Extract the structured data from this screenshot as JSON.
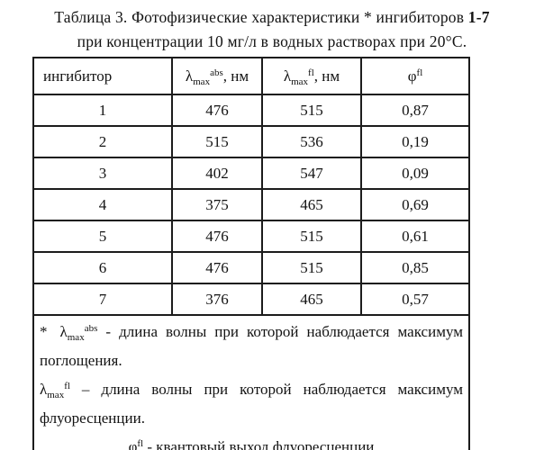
{
  "page": {
    "title_line1_prefix": "Таблица 3. Фотофизические характеристики * ингибиторов ",
    "title_line1_bold": "1-7",
    "title_line2": "при концентрации 10 мг/л в водных растворах при 20°С."
  },
  "table": {
    "columns": [
      {
        "label": "ингибитор"
      },
      {
        "symbol": "λ",
        "sub": "max",
        "sup": "abs",
        "suffix": ", нм"
      },
      {
        "symbol": "λ",
        "sub": "max",
        "sup": "fl",
        "suffix": ", нм"
      },
      {
        "symbol": "φ",
        "sup": "fl"
      }
    ],
    "rows": [
      {
        "inhibitor": "1",
        "abs": "476",
        "fl": "515",
        "phi": "0,87"
      },
      {
        "inhibitor": "2",
        "abs": "515",
        "fl": "536",
        "phi": "0,19"
      },
      {
        "inhibitor": "3",
        "abs": "402",
        "fl": "547",
        "phi": "0,09"
      },
      {
        "inhibitor": "4",
        "abs": "375",
        "fl": "465",
        "phi": "0,69"
      },
      {
        "inhibitor": "5",
        "abs": "476",
        "fl": "515",
        "phi": "0,61"
      },
      {
        "inhibitor": "6",
        "abs": "476",
        "fl": "515",
        "phi": "0,85"
      },
      {
        "inhibitor": "7",
        "abs": "376",
        "fl": "465",
        "phi": "0,57"
      }
    ]
  },
  "footnotes": [
    {
      "marker": "*",
      "symbol": "λ",
      "sub": "max",
      "sup": "abs",
      "text": " - длина волны при которой наблюдается максимум поглощения."
    },
    {
      "symbol": "λ",
      "sub": "max",
      "sup": "fl",
      "text": " – длина волны при которой наблюдается максимум флуоресценции."
    },
    {
      "symbol": "φ",
      "sup": "fl",
      "text": " - квантовый выход флуоресценции"
    }
  ]
}
